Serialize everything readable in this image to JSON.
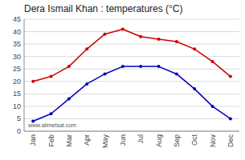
{
  "chart_data": {
    "type": "line",
    "title": "Dera Ismail Khan : temperatures (°C)",
    "categories": [
      "Jan",
      "Feb",
      "Mar",
      "Apr",
      "May",
      "Jun",
      "Jul",
      "Aug",
      "Sep",
      "Oct",
      "Nov",
      "Dec"
    ],
    "series": [
      {
        "color": "#cc0000",
        "marker": "circle",
        "values": [
          20,
          22,
          26,
          33,
          39,
          41,
          38,
          37,
          36,
          33,
          28,
          22
        ]
      },
      {
        "color": "#0000bb",
        "marker": "circle",
        "values": [
          4,
          7,
          13,
          19,
          23,
          26,
          26,
          26,
          23,
          17,
          10,
          5
        ]
      }
    ],
    "ylim": [
      0,
      45
    ],
    "yticks": [
      0,
      5,
      10,
      15,
      20,
      25,
      30,
      35,
      40,
      45
    ],
    "grid": true,
    "annotations": [
      "www.allmetsat.com"
    ]
  }
}
